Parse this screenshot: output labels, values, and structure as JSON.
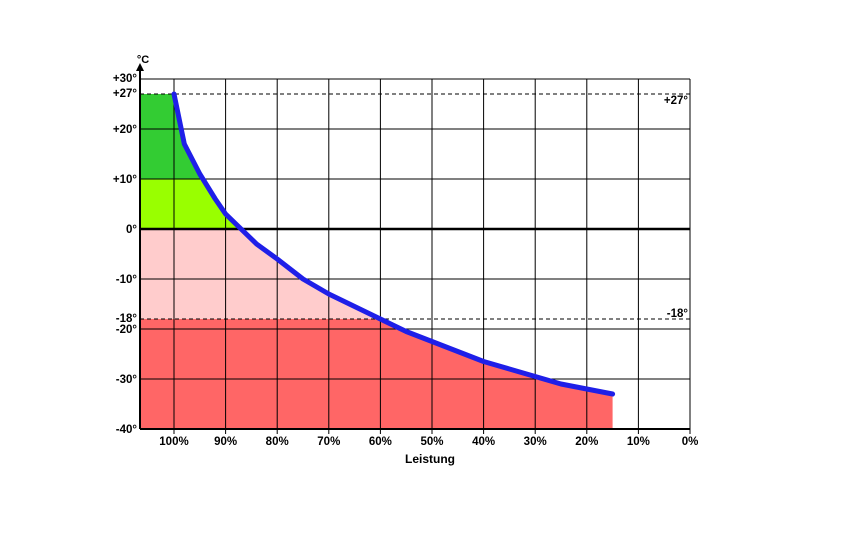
{
  "chart_data": {
    "type": "line",
    "xlabel": "Leistung",
    "ylabel": "°C",
    "x_ticks": [
      "100%",
      "90%",
      "80%",
      "70%",
      "60%",
      "50%",
      "40%",
      "30%",
      "20%",
      "10%",
      "0%"
    ],
    "y_ticks": [
      "+30°",
      "+27°",
      "+20°",
      "+10°",
      "0°",
      "-10°",
      "-18°",
      "-20°",
      "-30°",
      "-40°"
    ],
    "xlim": [
      100,
      0
    ],
    "ylim": [
      -40,
      30
    ],
    "grid": true,
    "reference_lines": [
      {
        "y": 27,
        "label": "+27°",
        "style": "dashed"
      },
      {
        "y": -18,
        "label": "-18°",
        "style": "dashed"
      }
    ],
    "series": [
      {
        "color": "#1f1fe8",
        "x": [
          100,
          98,
          95,
          92,
          90,
          87,
          84,
          80,
          75,
          70,
          65,
          60,
          55,
          50,
          45,
          40,
          35,
          30,
          25,
          20,
          15
        ],
        "y": [
          27,
          17,
          11,
          6,
          3,
          0,
          -3,
          -6,
          -10,
          -13,
          -15.5,
          -18,
          -20.5,
          -22.5,
          -24.5,
          -26.5,
          -28,
          -29.5,
          -31,
          -32,
          -33
        ]
      }
    ],
    "regions": [
      {
        "from": 27,
        "to": 10,
        "color": "#33cc33"
      },
      {
        "from": 10,
        "to": 0,
        "color": "#99ff00"
      },
      {
        "from": 0,
        "to": -18,
        "color": "#ffcccc"
      },
      {
        "from": -18,
        "to": -40,
        "color": "#ff6666"
      }
    ]
  }
}
